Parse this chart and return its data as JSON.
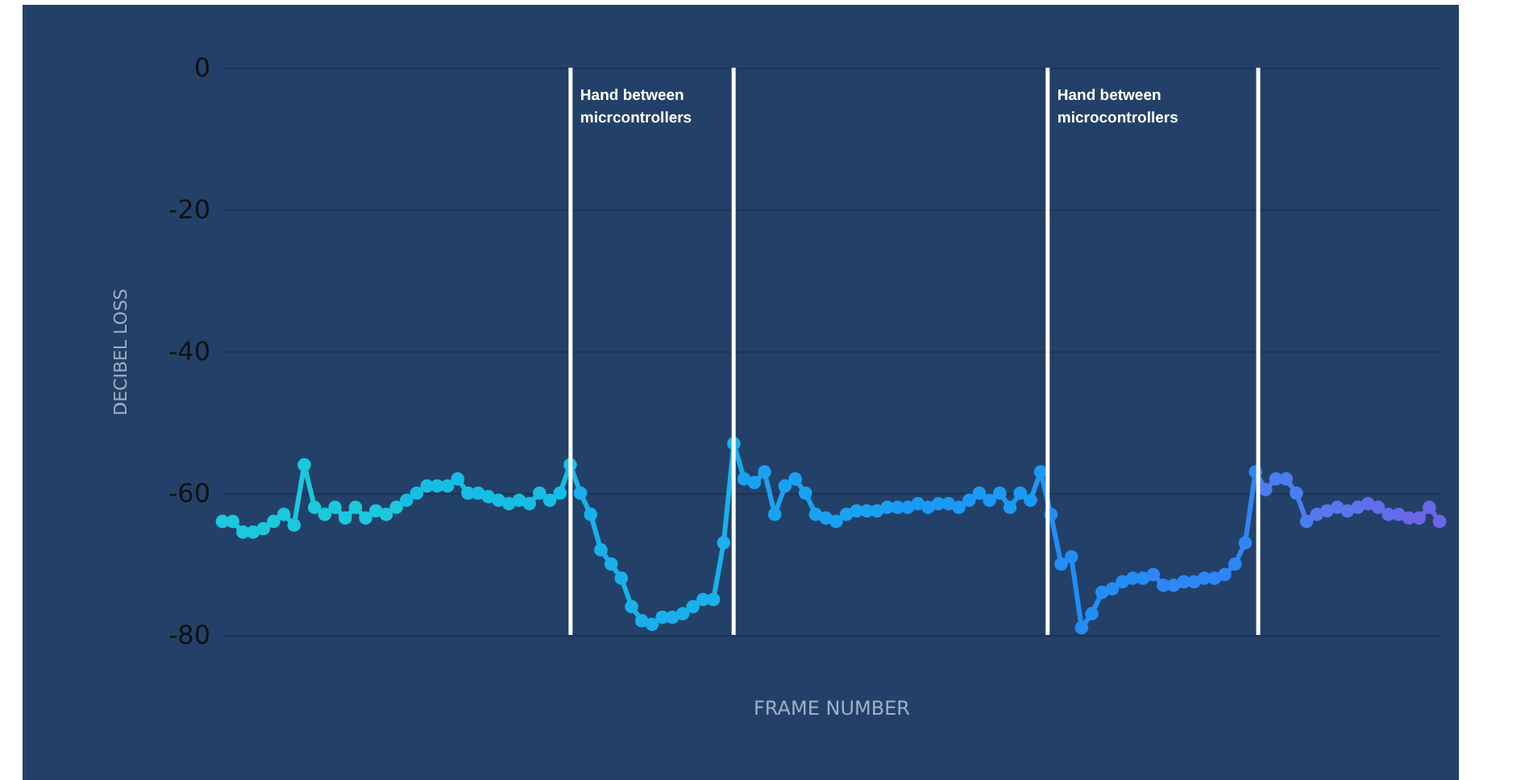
{
  "chart_data": {
    "type": "line",
    "xlabel": "FRAME NUMBER",
    "ylabel": "DECIBEL LOSS",
    "categories": [
      null,
      null,
      null,
      null,
      null,
      null,
      null,
      null,
      null,
      null,
      null,
      null,
      null,
      null,
      null,
      null,
      null,
      null,
      null,
      null,
      null,
      null,
      null,
      null,
      null,
      null,
      null,
      null,
      null,
      null,
      null,
      null,
      null,
      null,
      null,
      null,
      null,
      null,
      null,
      null,
      null,
      null,
      null,
      null,
      null,
      null,
      null,
      null,
      null,
      null,
      null,
      null,
      null,
      null,
      null,
      null,
      null,
      null,
      null,
      null,
      null,
      null,
      null,
      null,
      null,
      null,
      null,
      null,
      null,
      null,
      null,
      null,
      null,
      null,
      null,
      null,
      null,
      null,
      null,
      null,
      null,
      null,
      null,
      null,
      null,
      null,
      null,
      null,
      null,
      null,
      null,
      null,
      null,
      null,
      null,
      null,
      null,
      null,
      null,
      null,
      null,
      null,
      null,
      null,
      null,
      null,
      null,
      null,
      null,
      null,
      null,
      null,
      null,
      null,
      null,
      null,
      null,
      null,
      null,
      null
    ],
    "values": [
      -64,
      -64,
      -65.5,
      -65.5,
      -65,
      -64,
      -63,
      -64.5,
      -56,
      -62,
      -63,
      -62,
      -63.5,
      -62,
      -63.5,
      -62.5,
      -63,
      -62,
      -61,
      -60,
      -59,
      -59,
      -59,
      -58,
      -60,
      -60,
      -60.5,
      -61,
      -61.5,
      -61,
      -61.5,
      -60,
      -61,
      -60,
      -56,
      -60,
      -63,
      -68,
      -70,
      -72,
      -76,
      -78,
      -78.5,
      -77.5,
      -77.5,
      -77,
      -76,
      -75,
      -75,
      -67,
      -53,
      -58,
      -58.5,
      -57,
      -63,
      -59,
      -58,
      -60,
      -63,
      -63.5,
      -64,
      -63,
      -62.5,
      -62.5,
      -62.5,
      -62,
      -62,
      -62,
      -61.5,
      -62,
      -61.5,
      -61.5,
      -62,
      -61,
      -60,
      -61,
      -60,
      -62,
      -60,
      -61,
      -57,
      -63,
      -70,
      -69,
      -79,
      -77,
      -74,
      -73.5,
      -72.5,
      -72,
      -72,
      -71.5,
      -73,
      -73,
      -72.5,
      -72.5,
      -72,
      -72,
      -71.5,
      -70,
      -67,
      -57,
      -59.5,
      -58,
      -58,
      -60,
      -64,
      -63,
      -62.5,
      -62,
      -62.5,
      -62,
      -61.5,
      -62,
      -63,
      -63,
      -63.5,
      -63.5,
      -62,
      -64
    ],
    "colors": [
      "#1cc8dc",
      "#1cc8dc",
      "#1cc8dc",
      "#1cc8dc",
      "#1cc8dc",
      "#1cc8dc",
      "#1cc8dc",
      "#1cc8dc",
      "#1cc8dc",
      "#1cc8dc",
      "#1cc8dc",
      "#1cc8dc",
      "#1cc8dc",
      "#1cc8dc",
      "#1cc8dc",
      "#1cc8dc",
      "#1cc8dc",
      "#1cc8dc",
      "#16bee4",
      "#16bee4",
      "#16bee4",
      "#16bee4",
      "#16bee4",
      "#16bee4",
      "#16bee4",
      "#16bee4",
      "#16bee4",
      "#16bee4",
      "#16bee4",
      "#16bee4",
      "#16bee4",
      "#16bee4",
      "#16bee4",
      "#16bee4",
      "#16bee4",
      "#19b0ec",
      "#19b0ec",
      "#19b0ec",
      "#19b0ec",
      "#19b0ec",
      "#19b0ec",
      "#19b0ec",
      "#19b0ec",
      "#19b0ec",
      "#19b0ec",
      "#19b0ec",
      "#19b0ec",
      "#19b0ec",
      "#19b0ec",
      "#19b0ec",
      "#19b0ec",
      "#1aa2f2",
      "#1aa2f2",
      "#1aa2f2",
      "#1aa2f2",
      "#1aa2f2",
      "#1aa2f2",
      "#1aa2f2",
      "#1aa2f2",
      "#1aa2f2",
      "#1aa2f2",
      "#1aa2f2",
      "#1aa2f2",
      "#1aa2f2",
      "#1aa2f2",
      "#1aa2f2",
      "#1a9af5",
      "#1a9af5",
      "#1a9af5",
      "#1a9af5",
      "#1a9af5",
      "#1a9af5",
      "#1a9af5",
      "#1a9af5",
      "#1a9af5",
      "#1a9af5",
      "#1a9af5",
      "#1a9af5",
      "#1a9af5",
      "#1a9af5",
      "#1a9af5",
      "#238ef6",
      "#238ef6",
      "#238ef6",
      "#238ef6",
      "#238ef6",
      "#238ef6",
      "#238ef6",
      "#238ef6",
      "#238ef6",
      "#238ef6",
      "#2f86f5",
      "#2f86f5",
      "#2f86f5",
      "#2f86f5",
      "#2f86f5",
      "#2f86f5",
      "#2f86f5",
      "#2f86f5",
      "#2f86f5",
      "#2f86f5",
      "#2f86f5",
      "#4a7df2",
      "#4a7df2",
      "#4a7df2",
      "#4a7df2",
      "#4a7df2",
      "#5a76ee",
      "#5a76ee",
      "#5a76ee",
      "#5a76ee",
      "#5a76ee",
      "#636cea",
      "#636cea",
      "#636cea",
      "#636cea",
      "#6a66e8",
      "#6a66e8",
      "#6a66e8",
      "#6a66e8"
    ],
    "ylim": [
      -80,
      0
    ],
    "yticks": [
      0,
      -20,
      -40,
      -60,
      -80
    ],
    "grid": "y",
    "marker": "circle",
    "line_style": "solid",
    "annotations": [
      "Hand between micrcontrollers",
      "Hand between microcontrollers"
    ]
  }
}
